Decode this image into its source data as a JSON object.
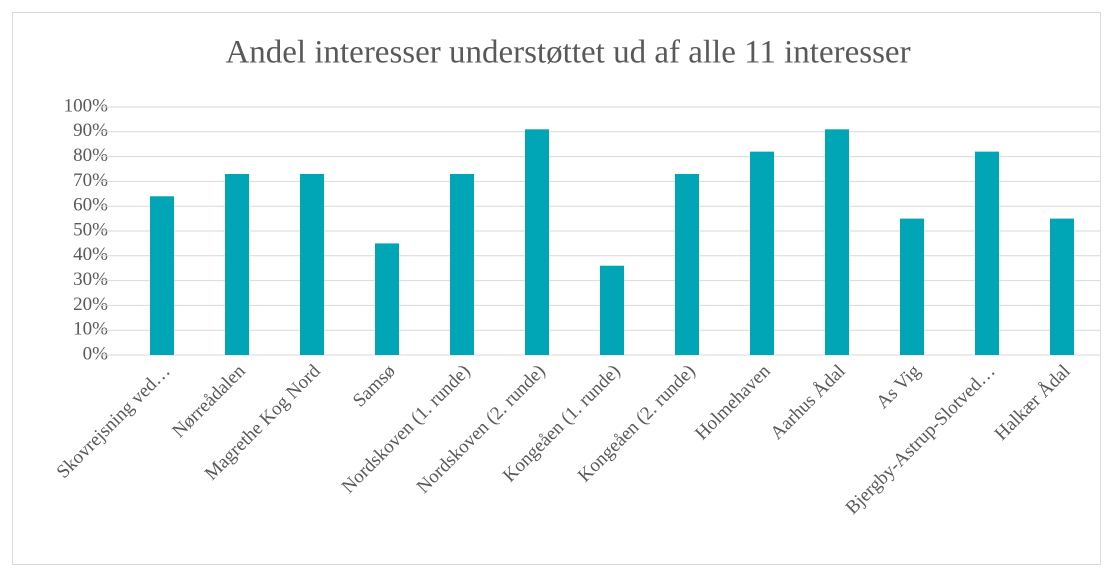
{
  "chart_data": {
    "type": "bar",
    "title": "Andel interesser understøttet ud af alle 11 interesser",
    "categories": [
      "Skovrejsning ved…",
      "Nørreådalen",
      "Magrethe Kog Nord",
      "Samsø",
      "Nordskoven (1. runde)",
      "Nordskoven (2. runde)",
      "Kongeåen (1. runde)",
      "Kongeåen (2. runde)",
      "Holmehaven",
      "Aarhus Ådal",
      "As Vig",
      "Bjergby-Astrup-Slotved…",
      "Halkær Ådal"
    ],
    "values": [
      64,
      73,
      73,
      45,
      73,
      91,
      36,
      73,
      82,
      91,
      55,
      82,
      55
    ],
    "color": "#00a6b5",
    "ylim": [
      0,
      100
    ],
    "yticks": [
      {
        "value": 0,
        "label": "0%"
      },
      {
        "value": 10,
        "label": "10%"
      },
      {
        "value": 20,
        "label": "20%"
      },
      {
        "value": 30,
        "label": "30%"
      },
      {
        "value": 40,
        "label": "40%"
      },
      {
        "value": 50,
        "label": "50%"
      },
      {
        "value": 60,
        "label": "60%"
      },
      {
        "value": 70,
        "label": "70%"
      },
      {
        "value": 80,
        "label": "80%"
      },
      {
        "value": 90,
        "label": "90%"
      },
      {
        "value": 100,
        "label": "100%"
      }
    ],
    "grid": true
  }
}
